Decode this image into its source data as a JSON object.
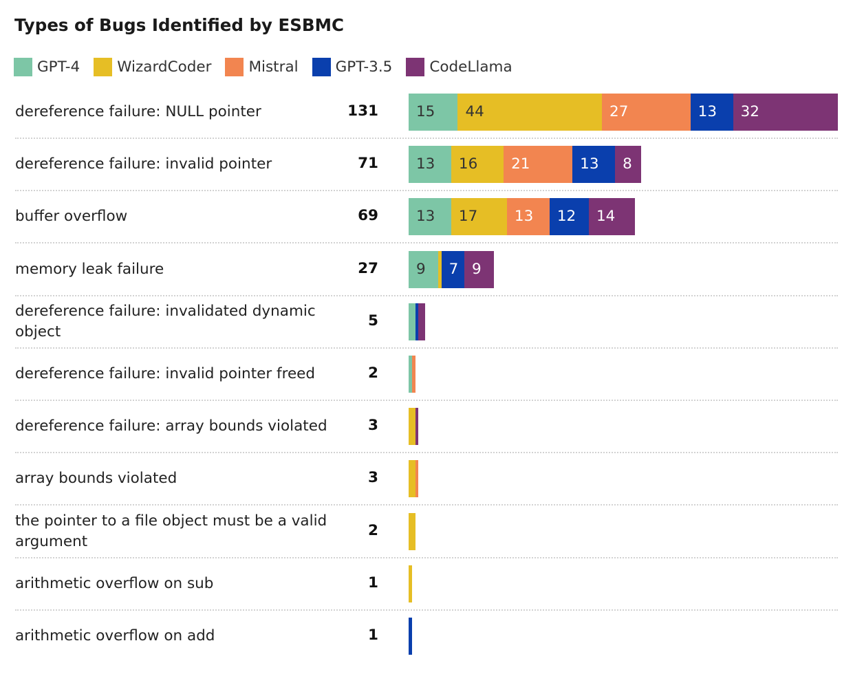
{
  "chart_data": {
    "type": "bar",
    "orientation": "horizontal",
    "stacked": true,
    "title": "Types of Bugs Identified by ESBMC",
    "legend_position": "top-left",
    "grid": false,
    "series": [
      {
        "name": "GPT-4",
        "color": "#7dc6a6",
        "text_color": "#333333"
      },
      {
        "name": "WizardCoder",
        "color": "#e6be25",
        "text_color": "#333333"
      },
      {
        "name": "Mistral",
        "color": "#f28550",
        "text_color": "#ffffff"
      },
      {
        "name": "GPT-3.5",
        "color": "#0a3fad",
        "text_color": "#ffffff"
      },
      {
        "name": "CodeLlama",
        "color": "#7d3474",
        "text_color": "#ffffff"
      }
    ],
    "categories": [
      {
        "label": "dereference failure: NULL pointer",
        "total": "131",
        "values": [
          15,
          44,
          27,
          13,
          32
        ]
      },
      {
        "label": "dereference failure: invalid pointer",
        "total": "71",
        "values": [
          13,
          16,
          21,
          13,
          8
        ]
      },
      {
        "label": "buffer overflow",
        "total": "69",
        "values": [
          13,
          17,
          13,
          12,
          14
        ]
      },
      {
        "label": "memory leak failure",
        "total": "27",
        "values": [
          9,
          1,
          0,
          7,
          9
        ]
      },
      {
        "label": "dereference failure: invalidated dynamic object",
        "total": "5",
        "values": [
          2,
          0,
          0,
          1,
          2
        ]
      },
      {
        "label": "dereference failure: invalid pointer freed",
        "total": "2",
        "values": [
          1,
          0,
          1,
          0,
          0
        ]
      },
      {
        "label": "dereference failure: array bounds violated",
        "total": "3",
        "values": [
          0,
          2,
          0,
          0,
          1
        ]
      },
      {
        "label": "array bounds violated",
        "total": "3",
        "values": [
          0,
          2,
          1,
          0,
          0
        ]
      },
      {
        "label": "the pointer to a file object must be a valid argument",
        "total": "2",
        "values": [
          0,
          2,
          0,
          0,
          0
        ]
      },
      {
        "label": "arithmetic overflow on sub",
        "total": "1",
        "values": [
          0,
          1,
          0,
          0,
          0
        ]
      },
      {
        "label": "arithmetic overflow on add",
        "total": "1",
        "values": [
          0,
          0,
          0,
          1,
          0
        ]
      }
    ]
  }
}
